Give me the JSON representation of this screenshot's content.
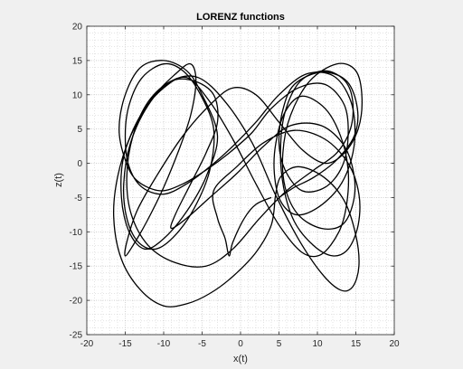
{
  "chart_data": {
    "type": "line",
    "title": "LORENZ functions",
    "xlabel": "x(t)",
    "ylabel": "z(t)",
    "xlim": [
      -20,
      20
    ],
    "ylim": [
      -25,
      20
    ],
    "xticks": [
      -20,
      -15,
      -10,
      -5,
      0,
      5,
      10,
      15,
      20
    ],
    "yticks": [
      -25,
      -20,
      -15,
      -10,
      -5,
      0,
      5,
      10,
      15,
      20
    ],
    "grid": true,
    "minor_grid": true,
    "series": [
      {
        "color": "#000000",
        "x": [
          5,
          7,
          9.6,
          12.5,
          14.8,
          15.2,
          13.8,
          10.5,
          7,
          5.5,
          5,
          5.8,
          8,
          11,
          13.2,
          14,
          13.5,
          11,
          7.5,
          4,
          1.5,
          -1.5,
          -4.5,
          -7.5,
          -10.5,
          -13.5,
          -15,
          -15.8,
          -15,
          -13,
          -10,
          -7,
          -5,
          -3,
          -4.5,
          -7,
          -10,
          -12.5,
          -14.5,
          -15.5,
          -15.2,
          -13,
          -10,
          -7,
          -4,
          -1,
          2,
          5,
          8,
          10.5,
          12.8,
          13.8,
          14,
          13,
          11,
          8,
          5.8,
          4.6,
          4.4,
          5.2,
          7.2,
          10,
          12.8,
          14.4,
          14.9,
          14.2,
          12,
          8.5,
          5,
          2,
          -1,
          -4,
          -7,
          -10,
          -12.8,
          -14.5,
          -15,
          -14.5,
          -12.8,
          -10,
          -7.5,
          -5.2,
          -3.5,
          -4,
          -6,
          -8.5,
          -11,
          -13.3,
          -14.8,
          -15.2,
          -14.3,
          -12,
          -9,
          -5.5,
          -2,
          1.5,
          4.5,
          7.5,
          10.5,
          13,
          14.6,
          15.4,
          15,
          13.5,
          10.8,
          7.5,
          5.2,
          4.5
        ],
        "y": [
          -5,
          -3.5,
          -2,
          0.5,
          4,
          8,
          12,
          13.3,
          11.5,
          7.8,
          3,
          -1,
          -4,
          -3.5,
          -0.5,
          4,
          8.5,
          11.5,
          11,
          8,
          4.5,
          1.5,
          -1,
          -3,
          -4,
          -2.5,
          0.5,
          5,
          10,
          14,
          15,
          13.5,
          10,
          4,
          -2,
          -7,
          -11,
          -12.5,
          -10,
          -5,
          1,
          7,
          11,
          12.5,
          9,
          3.5,
          -3,
          -9,
          -13,
          -13.3,
          -10,
          -6,
          -1,
          4,
          8,
          9.8,
          7.5,
          3,
          -1.5,
          -5.5,
          -7.5,
          -6.5,
          -3.5,
          0.5,
          5,
          9.5,
          12.8,
          13,
          10,
          6,
          2.5,
          -0.5,
          -3,
          -4.5,
          -3.5,
          -0.5,
          4,
          8.5,
          12.5,
          14.5,
          13.5,
          10,
          5,
          -1,
          -6.5,
          -10.5,
          -12.5,
          -11.5,
          -8,
          -3,
          3,
          8.5,
          12,
          12.5,
          9,
          3,
          -4.5,
          -11,
          -16,
          -18.5,
          -18,
          -15,
          -10.5,
          -5.5,
          -2,
          -0.5,
          -2,
          -5
        ]
      },
      {
        "color": "#000000",
        "x": [
          4.5,
          4,
          2,
          -1,
          -4,
          -7,
          -10,
          -13,
          -15.5,
          -16.5,
          -16,
          -14.3,
          -11.5,
          -8.5,
          -6.5,
          -5.8,
          -6.5,
          -8,
          -10,
          -12.2,
          -14,
          -15,
          -14.8,
          -13.5,
          -11,
          -7.5,
          -4,
          -1,
          2,
          5,
          8,
          11,
          13.5,
          15.3,
          15.8,
          15,
          12.5,
          9,
          6.5,
          5.5,
          5.8,
          7.5,
          10.5,
          13.2,
          14.6,
          14.8,
          13.5,
          10.5,
          6.5,
          3,
          -0.5,
          -4,
          -7,
          -9,
          -8.5,
          -6.5,
          -4.5,
          -3,
          -3.5,
          -6,
          -9,
          -12,
          -14,
          -14.8,
          -14.2,
          -12,
          -8.5,
          -4.5,
          -1,
          2.5,
          6,
          9.5,
          12.5,
          14.3,
          14.6,
          13.6,
          11,
          7.8,
          5.8,
          5.2,
          5.6,
          7,
          9.5,
          12,
          14,
          15.3,
          15.4,
          14,
          11,
          7,
          3,
          -0.5,
          -3.5,
          -3,
          -2,
          -1.5,
          -1,
          0.5,
          2,
          4
        ],
        "y": [
          -5,
          -9,
          -13,
          -16.5,
          -19,
          -20.5,
          -20.8,
          -18.5,
          -14,
          -8,
          -2,
          4,
          9.5,
          13,
          14.5,
          12,
          7,
          2,
          -3.5,
          -8.5,
          -12,
          -13.5,
          -11.5,
          -7,
          -2,
          4,
          8.5,
          11,
          10,
          6,
          2,
          0,
          1.5,
          5,
          9.5,
          13.5,
          14.5,
          12,
          7,
          1.5,
          -3.5,
          -7.5,
          -9.5,
          -9,
          -6,
          -2,
          2.5,
          5.5,
          5.5,
          2.5,
          -1.5,
          -5,
          -8,
          -9.5,
          -7.5,
          -3,
          1.5,
          6,
          10,
          12,
          12,
          9,
          4,
          -2,
          -7.5,
          -12,
          -14.5,
          -15,
          -12.5,
          -8,
          -4,
          -1,
          1.5,
          5,
          9,
          12,
          13.5,
          12,
          7.5,
          2,
          -3.5,
          -8.5,
          -12,
          -13.5,
          -12.5,
          -9,
          -4.5,
          0,
          3.5,
          4.8,
          3,
          -0.5,
          -4,
          -8,
          -11,
          -13.5,
          -11.5,
          -8,
          -6,
          -5
        ]
      }
    ]
  }
}
